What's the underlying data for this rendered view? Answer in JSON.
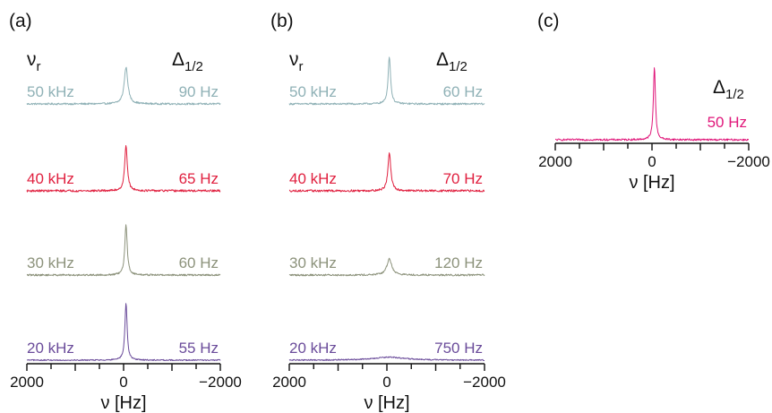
{
  "chart_data": [
    {
      "type": "line",
      "panel_label": "(a)",
      "header_left": "νr",
      "header_right": "Δ1/2",
      "x_ticks": [
        2000,
        0,
        -2000
      ],
      "x_tick_labels": [
        "2000",
        "0",
        "−2000"
      ],
      "xlabel": "ν [Hz]",
      "xlim": [
        2000,
        -2000
      ],
      "series": [
        {
          "name": "50 kHz",
          "width_label": "90 Hz",
          "color": "#8fb1b6",
          "center": -50,
          "fwhm": 90,
          "height": 0.5,
          "noise": 0.012
        },
        {
          "name": "40 kHz",
          "width_label": "65 Hz",
          "color": "#e0203f",
          "center": -50,
          "fwhm": 65,
          "height": 0.62,
          "noise": 0.014
        },
        {
          "name": "30 kHz",
          "width_label": "60 Hz",
          "color": "#8c927b",
          "center": -50,
          "fwhm": 60,
          "height": 0.68,
          "noise": 0.012
        },
        {
          "name": "20 kHz",
          "width_label": "55 Hz",
          "color": "#6a4b9a",
          "center": -50,
          "fwhm": 55,
          "height": 0.78,
          "noise": 0.008
        }
      ]
    },
    {
      "type": "line",
      "panel_label": "(b)",
      "header_left": "νr",
      "header_right": "Δ1/2",
      "x_ticks": [
        2000,
        0,
        -2000
      ],
      "x_tick_labels": [
        "2000",
        "0",
        "−2000"
      ],
      "xlabel": "ν [Hz]",
      "xlim": [
        2000,
        -2000
      ],
      "series": [
        {
          "name": "50 kHz",
          "width_label": "60 Hz",
          "color": "#8fb1b6",
          "center": -50,
          "fwhm": 60,
          "height": 0.65,
          "noise": 0.012
        },
        {
          "name": "40 kHz",
          "width_label": "70 Hz",
          "color": "#e0203f",
          "center": -50,
          "fwhm": 70,
          "height": 0.52,
          "noise": 0.014
        },
        {
          "name": "30 kHz",
          "width_label": "120 Hz",
          "color": "#8c927b",
          "center": -50,
          "fwhm": 120,
          "height": 0.22,
          "noise": 0.012
        },
        {
          "name": "20 kHz",
          "width_label": "750 Hz",
          "color": "#6a4b9a",
          "center": -50,
          "fwhm": 750,
          "height": 0.04,
          "noise": 0.008
        }
      ]
    },
    {
      "type": "line",
      "panel_label": "(c)",
      "header_right": "Δ1/2",
      "x_ticks": [
        2000,
        0,
        -2000
      ],
      "x_tick_labels": [
        "2000",
        "0",
        "−2000"
      ],
      "xlabel": "ν [Hz]",
      "xlim": [
        2000,
        -2000
      ],
      "series": [
        {
          "width_label": "50 Hz",
          "color": "#e0177a",
          "center": -50,
          "fwhm": 50,
          "height": 0.82,
          "noise": 0.01
        }
      ]
    }
  ]
}
